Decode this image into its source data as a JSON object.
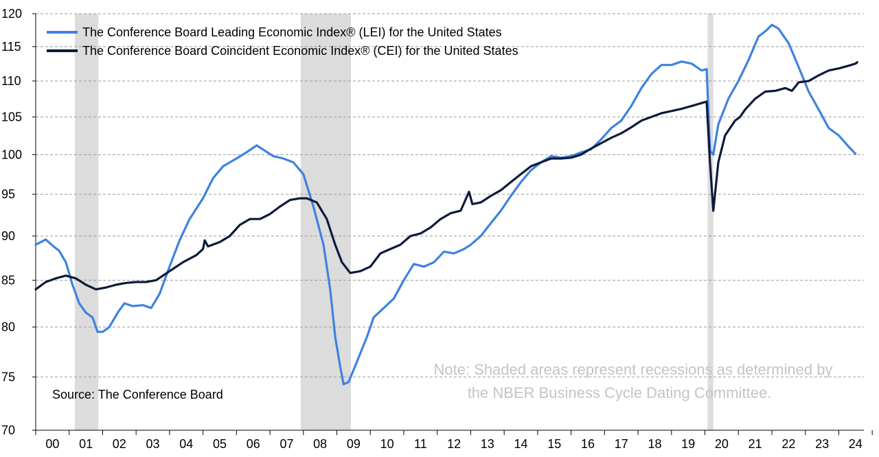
{
  "chart_data": {
    "type": "line",
    "title": "",
    "xlabel": "",
    "ylabel": "",
    "ylim": [
      70,
      120
    ],
    "y_ticks": [
      "120",
      "115",
      "110",
      "105",
      "100",
      "95",
      "90",
      "85",
      "80",
      "75",
      "70"
    ],
    "x_start_year": 2000,
    "x_end_year": 2024.75,
    "x_tick_labels": [
      "00",
      "01",
      "02",
      "03",
      "04",
      "05",
      "06",
      "07",
      "08",
      "09",
      "10",
      "11",
      "12",
      "13",
      "14",
      "15",
      "16",
      "17",
      "18",
      "19",
      "20",
      "21",
      "22",
      "23",
      "24"
    ],
    "grid": "horizontal dashed",
    "recessions": [
      [
        2001.17,
        2001.87
      ],
      [
        2007.92,
        2009.42
      ],
      [
        2020.08,
        2020.25
      ]
    ],
    "legend_position": "top-left",
    "series": [
      {
        "name": "The Conference Board Leading Economic Index® (LEI) for the United States",
        "color": "#3d82e0",
        "points": [
          [
            2000.0,
            89.0
          ],
          [
            2000.15,
            89.3
          ],
          [
            2000.3,
            89.6
          ],
          [
            2000.5,
            88.9
          ],
          [
            2000.7,
            88.3
          ],
          [
            2000.9,
            87.0
          ],
          [
            2001.1,
            84.5
          ],
          [
            2001.3,
            82.5
          ],
          [
            2001.5,
            81.5
          ],
          [
            2001.7,
            81.0
          ],
          [
            2001.85,
            79.5
          ],
          [
            2002.0,
            79.5
          ],
          [
            2002.2,
            80.0
          ],
          [
            2002.45,
            81.5
          ],
          [
            2002.65,
            82.5
          ],
          [
            2002.9,
            82.2
          ],
          [
            2003.2,
            82.3
          ],
          [
            2003.45,
            82.0
          ],
          [
            2003.7,
            83.5
          ],
          [
            2004.0,
            86.5
          ],
          [
            2004.3,
            89.5
          ],
          [
            2004.6,
            92.0
          ],
          [
            2005.0,
            94.5
          ],
          [
            2005.3,
            97.0
          ],
          [
            2005.6,
            98.5
          ],
          [
            2006.0,
            99.5
          ],
          [
            2006.3,
            100.3
          ],
          [
            2006.6,
            101.2
          ],
          [
            2006.85,
            100.5
          ],
          [
            2007.1,
            99.8
          ],
          [
            2007.4,
            99.5
          ],
          [
            2007.7,
            99.0
          ],
          [
            2008.0,
            97.5
          ],
          [
            2008.3,
            93.5
          ],
          [
            2008.6,
            89.0
          ],
          [
            2008.8,
            84.0
          ],
          [
            2008.95,
            79.0
          ],
          [
            2009.1,
            76.0
          ],
          [
            2009.2,
            74.3
          ],
          [
            2009.35,
            74.5
          ],
          [
            2009.6,
            76.5
          ],
          [
            2009.9,
            79.0
          ],
          [
            2010.1,
            81.0
          ],
          [
            2010.4,
            82.0
          ],
          [
            2010.7,
            83.0
          ],
          [
            2011.0,
            85.0
          ],
          [
            2011.3,
            86.8
          ],
          [
            2011.6,
            86.5
          ],
          [
            2011.9,
            87.0
          ],
          [
            2012.2,
            88.2
          ],
          [
            2012.5,
            88.0
          ],
          [
            2012.8,
            88.5
          ],
          [
            2013.0,
            89.0
          ],
          [
            2013.3,
            90.0
          ],
          [
            2013.6,
            91.5
          ],
          [
            2013.9,
            93.0
          ],
          [
            2014.2,
            94.8
          ],
          [
            2014.5,
            96.5
          ],
          [
            2014.8,
            98.0
          ],
          [
            2015.1,
            99.0
          ],
          [
            2015.4,
            99.8
          ],
          [
            2015.7,
            99.6
          ],
          [
            2016.0,
            99.8
          ],
          [
            2016.3,
            100.3
          ],
          [
            2016.6,
            100.7
          ],
          [
            2016.9,
            102.0
          ],
          [
            2017.2,
            103.5
          ],
          [
            2017.5,
            104.5
          ],
          [
            2017.8,
            106.5
          ],
          [
            2018.1,
            109.0
          ],
          [
            2018.4,
            111.0
          ],
          [
            2018.7,
            112.3
          ],
          [
            2019.0,
            112.3
          ],
          [
            2019.3,
            112.8
          ],
          [
            2019.6,
            112.5
          ],
          [
            2019.9,
            111.5
          ],
          [
            2020.05,
            111.7
          ],
          [
            2020.15,
            100.5
          ],
          [
            2020.25,
            100.0
          ],
          [
            2020.4,
            104.0
          ],
          [
            2020.7,
            107.5
          ],
          [
            2021.0,
            110.0
          ],
          [
            2021.3,
            113.0
          ],
          [
            2021.6,
            116.5
          ],
          [
            2021.85,
            117.5
          ],
          [
            2022.0,
            118.3
          ],
          [
            2022.2,
            117.7
          ],
          [
            2022.5,
            115.5
          ],
          [
            2022.8,
            112.0
          ],
          [
            2023.1,
            108.5
          ],
          [
            2023.4,
            106.0
          ],
          [
            2023.7,
            103.5
          ],
          [
            2024.0,
            102.5
          ],
          [
            2024.3,
            101.0
          ],
          [
            2024.5,
            100.1
          ]
        ]
      },
      {
        "name": "The Conference Board Coincident Economic Index® (CEI) for the United States",
        "color": "#0d1a3a",
        "points": [
          [
            2000.0,
            84.0
          ],
          [
            2000.3,
            84.8
          ],
          [
            2000.6,
            85.2
          ],
          [
            2000.9,
            85.5
          ],
          [
            2001.2,
            85.2
          ],
          [
            2001.5,
            84.5
          ],
          [
            2001.8,
            84.0
          ],
          [
            2002.1,
            84.2
          ],
          [
            2002.4,
            84.5
          ],
          [
            2002.7,
            84.7
          ],
          [
            2003.0,
            84.8
          ],
          [
            2003.3,
            84.8
          ],
          [
            2003.6,
            85.0
          ],
          [
            2004.0,
            86.0
          ],
          [
            2004.4,
            87.0
          ],
          [
            2004.8,
            87.8
          ],
          [
            2005.0,
            88.5
          ],
          [
            2005.05,
            89.5
          ],
          [
            2005.15,
            88.8
          ],
          [
            2005.5,
            89.3
          ],
          [
            2005.8,
            90.0
          ],
          [
            2006.1,
            91.3
          ],
          [
            2006.4,
            92.0
          ],
          [
            2006.7,
            92.0
          ],
          [
            2007.0,
            92.6
          ],
          [
            2007.3,
            93.5
          ],
          [
            2007.6,
            94.3
          ],
          [
            2007.9,
            94.5
          ],
          [
            2008.1,
            94.5
          ],
          [
            2008.4,
            94.0
          ],
          [
            2008.7,
            92.0
          ],
          [
            2008.95,
            89.0
          ],
          [
            2009.15,
            87.0
          ],
          [
            2009.4,
            85.8
          ],
          [
            2009.7,
            86.0
          ],
          [
            2010.0,
            86.5
          ],
          [
            2010.3,
            88.0
          ],
          [
            2010.6,
            88.5
          ],
          [
            2010.9,
            89.0
          ],
          [
            2011.2,
            90.0
          ],
          [
            2011.5,
            90.3
          ],
          [
            2011.8,
            91.0
          ],
          [
            2012.1,
            92.0
          ],
          [
            2012.4,
            92.7
          ],
          [
            2012.7,
            93.0
          ],
          [
            2012.95,
            95.3
          ],
          [
            2013.05,
            93.8
          ],
          [
            2013.3,
            94.0
          ],
          [
            2013.6,
            94.8
          ],
          [
            2013.9,
            95.5
          ],
          [
            2014.2,
            96.5
          ],
          [
            2014.5,
            97.5
          ],
          [
            2014.8,
            98.5
          ],
          [
            2015.1,
            99.0
          ],
          [
            2015.4,
            99.5
          ],
          [
            2015.7,
            99.5
          ],
          [
            2016.0,
            99.6
          ],
          [
            2016.3,
            100.0
          ],
          [
            2016.6,
            100.8
          ],
          [
            2016.9,
            101.5
          ],
          [
            2017.2,
            102.2
          ],
          [
            2017.5,
            102.8
          ],
          [
            2017.8,
            103.6
          ],
          [
            2018.1,
            104.5
          ],
          [
            2018.4,
            105.0
          ],
          [
            2018.7,
            105.5
          ],
          [
            2019.0,
            105.8
          ],
          [
            2019.3,
            106.1
          ],
          [
            2019.6,
            106.5
          ],
          [
            2019.9,
            106.9
          ],
          [
            2020.05,
            107.1
          ],
          [
            2020.15,
            99.0
          ],
          [
            2020.25,
            93.0
          ],
          [
            2020.4,
            99.0
          ],
          [
            2020.6,
            102.5
          ],
          [
            2020.9,
            104.5
          ],
          [
            2021.05,
            105.0
          ],
          [
            2021.2,
            106.0
          ],
          [
            2021.5,
            107.5
          ],
          [
            2021.8,
            108.5
          ],
          [
            2022.1,
            108.6
          ],
          [
            2022.4,
            109.0
          ],
          [
            2022.6,
            108.6
          ],
          [
            2022.8,
            109.8
          ],
          [
            2023.1,
            110.0
          ],
          [
            2023.4,
            110.8
          ],
          [
            2023.7,
            111.5
          ],
          [
            2024.0,
            111.8
          ],
          [
            2024.3,
            112.2
          ],
          [
            2024.5,
            112.5
          ],
          [
            2024.55,
            112.7
          ]
        ]
      }
    ],
    "annotations": {
      "source": "Source: The Conference Board",
      "note_line1": "Note: Shaded areas represent recessions as determined by",
      "note_line2": "the NBER Business Cycle Dating Committee."
    }
  }
}
